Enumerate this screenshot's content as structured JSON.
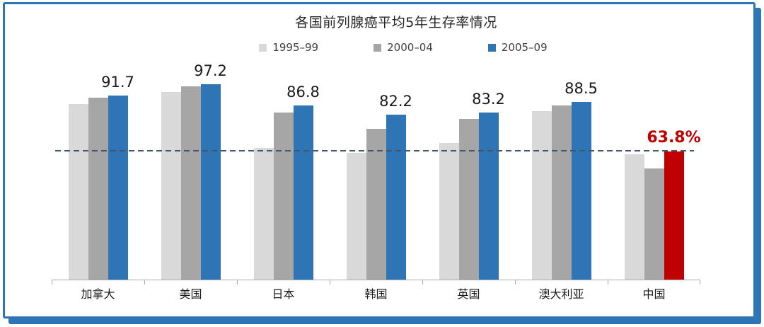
{
  "slide": {
    "border_color": "#2E75B6",
    "background": "#ffffff"
  },
  "chart_data": {
    "type": "bar",
    "title": "各国前列腺癌平均5年生存率情况",
    "categories": [
      "加拿大",
      "美国",
      "日本",
      "韩国",
      "英国",
      "澳大利亚",
      "中国"
    ],
    "series": [
      {
        "name": "1995–99",
        "color": "#D9D9D9",
        "values": [
          87.5,
          93.4,
          65.5,
          63.0,
          68.0,
          83.8,
          62.3
        ]
      },
      {
        "name": "2000–04",
        "color": "#A6A6A6",
        "values": [
          90.7,
          96.2,
          83.3,
          75.2,
          80.0,
          86.6,
          55.5
        ]
      },
      {
        "name": "2005–09",
        "color": "#2E75B6",
        "values": [
          91.7,
          97.2,
          86.8,
          82.2,
          83.2,
          88.5,
          63.8
        ]
      }
    ],
    "value_labels": [
      "91.7",
      "97.2",
      "86.8",
      "82.2",
      "83.2",
      "88.5",
      "63.8%"
    ],
    "highlight": {
      "category": "中国",
      "series": "2005–09",
      "bar_color": "#C00000",
      "label_color": "#C00000"
    },
    "reference_line": {
      "value": 63.8,
      "style": "dashed",
      "color": "#44546A"
    },
    "ylim": [
      0,
      104
    ],
    "xlabel": "",
    "ylabel": "",
    "grid": false,
    "legend_position": "top",
    "axis_color": "#ababab",
    "text_color": "#1a1a1a"
  }
}
